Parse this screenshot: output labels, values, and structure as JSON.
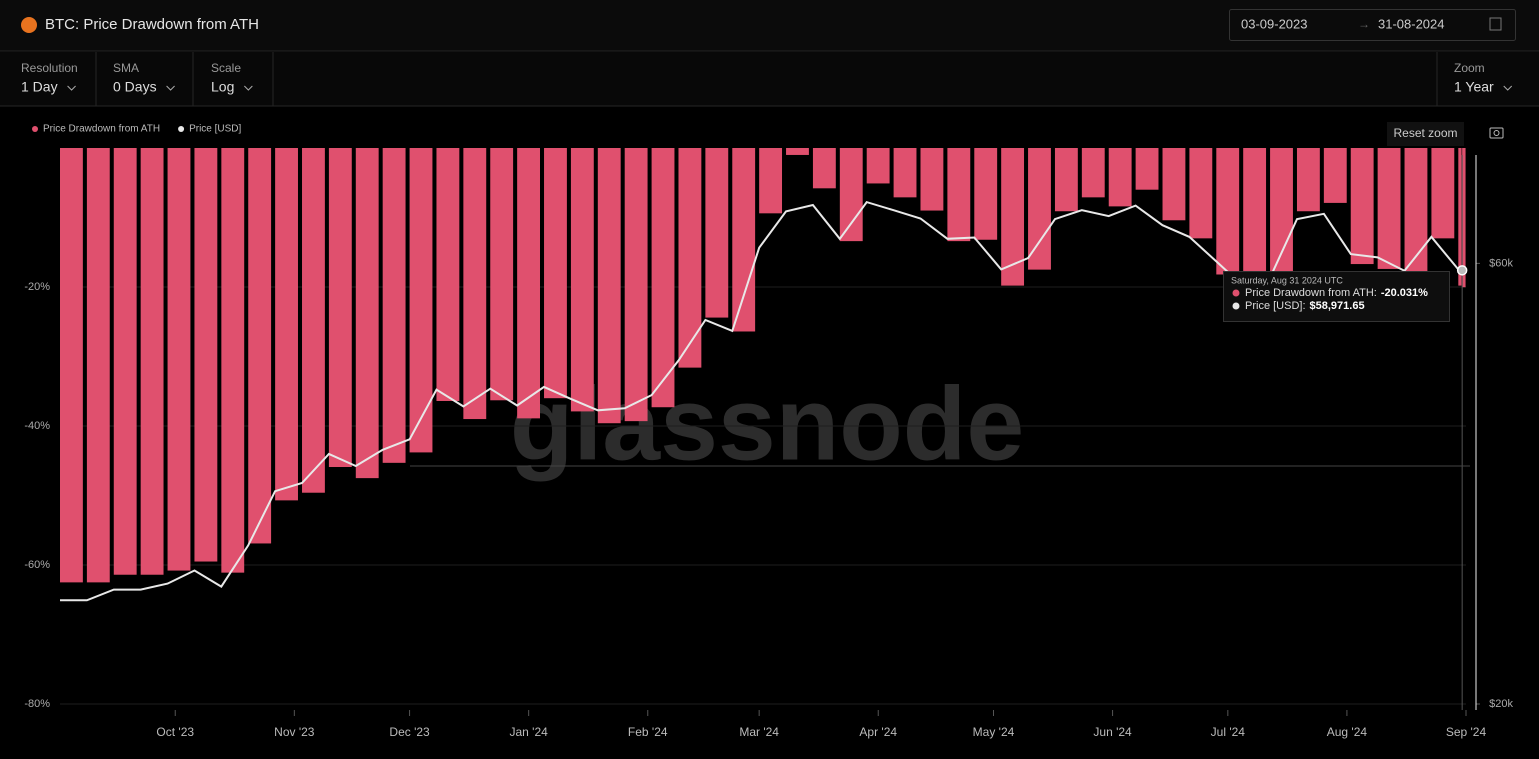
{
  "header": {
    "title": "BTC: Price Drawdown from ATH",
    "date_from": "03-09-2023",
    "date_to": "31-08-2024"
  },
  "controls": [
    {
      "label": "Resolution",
      "value": "1 Day"
    },
    {
      "label": "SMA",
      "value": "0 Days"
    },
    {
      "label": "Scale",
      "value": "Log"
    },
    {
      "label": "Zoom",
      "value": "1 Year"
    }
  ],
  "reset_zoom": "Reset zoom",
  "watermark": "glassnode",
  "chart_data": {
    "type": "bar_line",
    "x": [
      "2023-09-01",
      "2023-09-08",
      "2023-09-15",
      "2023-09-22",
      "2023-09-29",
      "2023-10-06",
      "2023-10-13",
      "2023-10-20",
      "2023-10-27",
      "2023-11-03",
      "2023-11-10",
      "2023-11-17",
      "2023-11-24",
      "2023-12-01",
      "2023-12-08",
      "2023-12-15",
      "2023-12-22",
      "2023-12-29",
      "2024-01-05",
      "2024-01-12",
      "2024-01-19",
      "2024-01-26",
      "2024-02-02",
      "2024-02-09",
      "2024-02-16",
      "2024-02-23",
      "2024-03-01",
      "2024-03-08",
      "2024-03-15",
      "2024-03-22",
      "2024-03-29",
      "2024-04-05",
      "2024-04-12",
      "2024-04-19",
      "2024-04-26",
      "2024-05-03",
      "2024-05-10",
      "2024-05-17",
      "2024-05-24",
      "2024-05-31",
      "2024-06-07",
      "2024-06-14",
      "2024-06-21",
      "2024-06-28",
      "2024-07-05",
      "2024-07-12",
      "2024-07-19",
      "2024-07-26",
      "2024-08-02",
      "2024-08-09",
      "2024-08-16",
      "2024-08-23",
      "2024-08-30",
      "2024-08-31"
    ],
    "xlim": [
      "2023-09-01",
      "2024-09-01"
    ],
    "xticks": [
      {
        "value": "2023-10-01",
        "label": "Oct '23"
      },
      {
        "value": "2023-11-01",
        "label": "Nov '23"
      },
      {
        "value": "2023-12-01",
        "label": "Dec '23"
      },
      {
        "value": "2024-01-01",
        "label": "Jan '24"
      },
      {
        "value": "2024-02-01",
        "label": "Feb '24"
      },
      {
        "value": "2024-03-01",
        "label": "Mar '24"
      },
      {
        "value": "2024-04-01",
        "label": "Apr '24"
      },
      {
        "value": "2024-05-01",
        "label": "May '24"
      },
      {
        "value": "2024-06-01",
        "label": "Jun '24"
      },
      {
        "value": "2024-07-01",
        "label": "Jul '24"
      },
      {
        "value": "2024-08-01",
        "label": "Aug '24"
      },
      {
        "value": "2024-09-01",
        "label": "Sep '24"
      }
    ],
    "series": [
      {
        "name": "Price Drawdown from ATH",
        "color": "#e0506e",
        "kind": "bar",
        "values": [
          -62.5,
          -62.5,
          -61.4,
          -61.4,
          -60.8,
          -59.5,
          -61.1,
          -56.9,
          -50.7,
          -49.6,
          -45.9,
          -47.5,
          -45.3,
          -43.8,
          -36.4,
          -39.0,
          -36.3,
          -38.9,
          -36.0,
          -37.9,
          -39.6,
          -39.3,
          -37.3,
          -31.6,
          -24.4,
          -26.4,
          -9.4,
          -1.0,
          -5.8,
          -13.4,
          -5.1,
          -7.1,
          -9.0,
          -13.4,
          -13.2,
          -19.8,
          -17.5,
          -9.1,
          -7.1,
          -8.4,
          -6.0,
          -10.4,
          -13.0,
          -18.2,
          -23.1,
          -21.4,
          -9.1,
          -7.9,
          -16.7,
          -17.4,
          -20.1,
          -13.0,
          -19.8,
          -20.031
        ]
      },
      {
        "name": "Price [USD]",
        "color": "#e8e8e8",
        "kind": "line",
        "axis": "y2",
        "values": [
          25900,
          25900,
          26600,
          26600,
          27000,
          27900,
          26800,
          29700,
          34000,
          34700,
          37300,
          36200,
          37700,
          38700,
          43800,
          42000,
          43900,
          42100,
          44100,
          42800,
          41600,
          41800,
          43200,
          47100,
          52100,
          50700,
          62400,
          68300,
          69400,
          63800,
          69900,
          68500,
          67100,
          63800,
          64000,
          59100,
          60800,
          67000,
          68500,
          67500,
          69300,
          66000,
          64100,
          60300,
          56700,
          57900,
          67000,
          67900,
          61400,
          60900,
          58900,
          64100,
          59100,
          58971.65
        ]
      }
    ],
    "ylim": [
      -80,
      0
    ],
    "yticks": [
      {
        "value": -80,
        "label": "-80%"
      },
      {
        "value": -60,
        "label": "-60%"
      },
      {
        "value": -40,
        "label": "-40%"
      },
      {
        "value": -20,
        "label": "-20%"
      }
    ],
    "y2lim": [
      20000,
      80000
    ],
    "y2ticks": [
      {
        "value": 20000,
        "label": "$20k"
      },
      {
        "value": 60000,
        "label": "$60k"
      }
    ],
    "y2scale": "log",
    "grid": true,
    "legend": "top-left",
    "tooltip": {
      "title": "Saturday, Aug 31 2024 UTC",
      "rows": [
        {
          "label": "Price Drawdown from ATH:",
          "value": "-20.031%"
        },
        {
          "label": "Price [USD]:",
          "value": "$58,971.65"
        }
      ]
    }
  }
}
